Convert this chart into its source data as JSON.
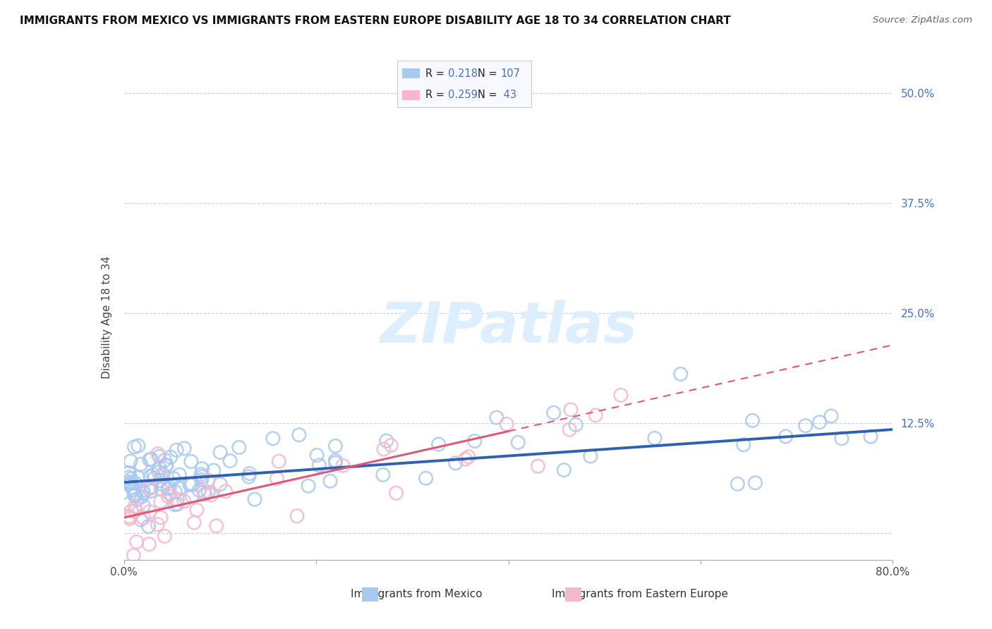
{
  "title": "IMMIGRANTS FROM MEXICO VS IMMIGRANTS FROM EASTERN EUROPE DISABILITY AGE 18 TO 34 CORRELATION CHART",
  "source": "Source: ZipAtlas.com",
  "xlabel_bottom": [
    "Immigrants from Mexico",
    "Immigrants from Eastern Europe"
  ],
  "ylabel": "Disability Age 18 to 34",
  "xlim": [
    0.0,
    0.8
  ],
  "ylim": [
    -0.03,
    0.52
  ],
  "xticks": [
    0.0,
    0.2,
    0.4,
    0.6,
    0.8
  ],
  "yticks": [
    0.0,
    0.125,
    0.25,
    0.375,
    0.5
  ],
  "ytick_labels": [
    "",
    "12.5%",
    "25.0%",
    "37.5%",
    "50.0%"
  ],
  "mexico_color": "#a8c8f0",
  "eastern_color": "#f5b8cb",
  "mexico_line_color": "#3060b0",
  "eastern_line_color": "#e05878",
  "eastern_line_dash": true,
  "R_mexico": 0.218,
  "N_mexico": 107,
  "R_eastern": 0.259,
  "N_eastern": 43,
  "background_color": "#ffffff",
  "grid_color": "#ccccdd",
  "watermark": "ZIPatlas",
  "watermark_color": "#ddeeff",
  "legend_box_color": "#f8f8ff",
  "legend_border_color": "#cccccc"
}
